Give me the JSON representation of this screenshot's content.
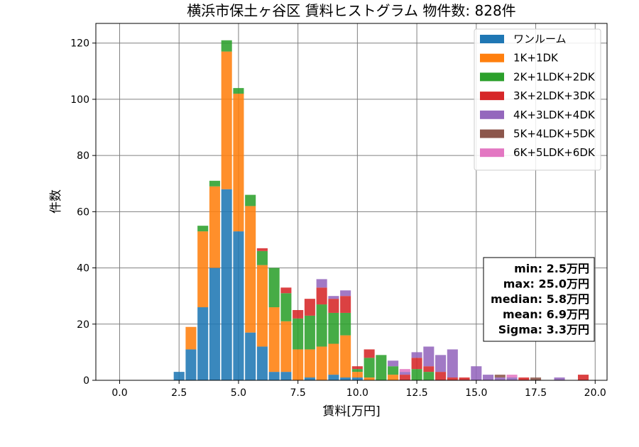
{
  "chart_data": {
    "type": "bar",
    "stacked": true,
    "title": "横浜市保土ヶ谷区 賃料ヒストグラム  物件数: 828件",
    "xlabel": "賃料[万円]",
    "ylabel": "件数",
    "xlim": [
      -1.0,
      20.5
    ],
    "ylim": [
      0,
      127
    ],
    "xticks": [
      0.0,
      2.5,
      5.0,
      7.5,
      10.0,
      12.5,
      15.0,
      17.5,
      20.0
    ],
    "xtick_labels": [
      "0.0",
      "2.5",
      "5.0",
      "7.5",
      "10.0",
      "12.5",
      "15.0",
      "17.5",
      "20.0"
    ],
    "yticks": [
      0,
      20,
      40,
      60,
      80,
      100,
      120
    ],
    "ytick_labels": [
      "0",
      "20",
      "40",
      "60",
      "80",
      "100",
      "120"
    ],
    "grid": true,
    "legend_position": "top-right",
    "bin_width": 0.5,
    "bins": [
      2.5,
      3.0,
      3.5,
      4.0,
      4.5,
      5.0,
      5.5,
      6.0,
      6.5,
      7.0,
      7.5,
      8.0,
      8.5,
      9.0,
      9.5,
      10.0,
      10.5,
      11.0,
      11.5,
      12.0,
      12.5,
      13.0,
      13.5,
      14.0,
      14.5,
      15.0,
      15.5,
      16.0,
      16.5,
      17.0,
      17.5,
      18.0,
      18.5,
      19.0,
      19.5
    ],
    "series": [
      {
        "name": "ワンルーム",
        "color": "#1f77b4",
        "values": [
          3,
          11,
          26,
          40,
          68,
          53,
          17,
          12,
          3,
          3,
          0,
          1,
          0,
          2,
          1,
          1,
          0,
          0,
          0,
          0,
          0,
          0,
          0,
          0,
          0,
          0,
          0,
          0,
          0,
          0,
          0,
          0,
          0,
          0,
          0
        ]
      },
      {
        "name": "1K+1DK",
        "color": "#ff7f0e",
        "values": [
          0,
          8,
          27,
          29,
          49,
          49,
          45,
          29,
          23,
          18,
          11,
          10,
          12,
          11,
          15,
          2,
          1,
          0,
          2,
          0,
          0,
          0,
          0,
          0,
          0,
          0,
          0,
          0,
          0,
          0,
          0,
          0,
          0,
          0,
          0
        ]
      },
      {
        "name": "2K+1LDK+2DK",
        "color": "#2ca02c",
        "values": [
          0,
          0,
          2,
          2,
          4,
          2,
          4,
          5,
          14,
          10,
          11,
          12,
          15,
          11,
          8,
          1,
          7,
          9,
          3,
          0,
          4,
          3,
          0,
          0,
          0,
          0,
          0,
          0,
          0,
          0,
          0,
          0,
          0,
          0,
          0
        ]
      },
      {
        "name": "3K+2LDK+3DK",
        "color": "#d62728",
        "values": [
          0,
          0,
          0,
          0,
          0,
          0,
          0,
          1,
          0,
          2,
          3,
          6,
          6,
          5,
          6,
          1,
          3,
          0,
          0,
          2,
          4,
          2,
          3,
          1,
          1,
          0,
          0,
          0,
          0,
          1,
          0,
          0,
          0,
          0,
          2
        ]
      },
      {
        "name": "4K+3LDK+4DK",
        "color": "#9467bd",
        "values": [
          0,
          0,
          0,
          0,
          0,
          0,
          0,
          0,
          0,
          0,
          0,
          0,
          3,
          1,
          2,
          0,
          0,
          0,
          2,
          1,
          2,
          7,
          6,
          10,
          0,
          5,
          2,
          1,
          1,
          0,
          0,
          0,
          1,
          0,
          0
        ]
      },
      {
        "name": "5K+4LDK+5DK",
        "color": "#8c564b",
        "values": [
          0,
          0,
          0,
          0,
          0,
          0,
          0,
          0,
          0,
          0,
          0,
          0,
          0,
          0,
          0,
          0,
          0,
          0,
          0,
          0,
          0,
          0,
          0,
          0,
          0,
          0,
          0,
          1,
          0,
          0,
          1,
          0,
          0,
          0,
          0
        ]
      },
      {
        "name": "6K+5LDK+6DK",
        "color": "#e377c2",
        "values": [
          0,
          0,
          0,
          0,
          0,
          0,
          0,
          0,
          0,
          0,
          0,
          0,
          0,
          0,
          0,
          0,
          0,
          0,
          0,
          1,
          0,
          0,
          0,
          0,
          0,
          0,
          0,
          0,
          1,
          0,
          0,
          0,
          0,
          0,
          0
        ]
      }
    ],
    "stats": [
      "min: 2.5万円",
      "max: 25.0万円",
      "median: 5.8万円",
      "mean: 6.9万円",
      "Sigma: 3.3万円"
    ]
  }
}
